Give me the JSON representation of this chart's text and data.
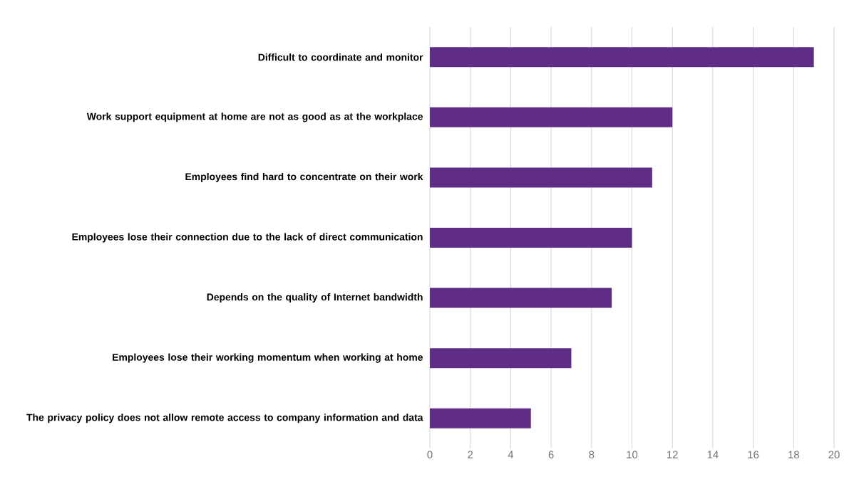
{
  "chart_data": {
    "type": "bar",
    "orientation": "horizontal",
    "categories": [
      "Difficult to coordinate and monitor",
      "Work support equipment at home are not as good as at the workplace",
      "Employees find hard to concentrate on their work",
      "Employees lose their connection due to the lack of direct communication",
      "Depends on the quality of Internet bandwidth",
      "Employees lose their working momentum when working at home",
      "The privacy policy does not allow remote access to company information and data"
    ],
    "values": [
      19,
      12,
      11,
      10,
      9,
      7,
      5
    ],
    "color": "#5f2c86",
    "xlim": [
      0,
      20
    ],
    "xticks": [
      0,
      2,
      4,
      6,
      8,
      10,
      12,
      14,
      16,
      18,
      20
    ],
    "grid": "x"
  }
}
